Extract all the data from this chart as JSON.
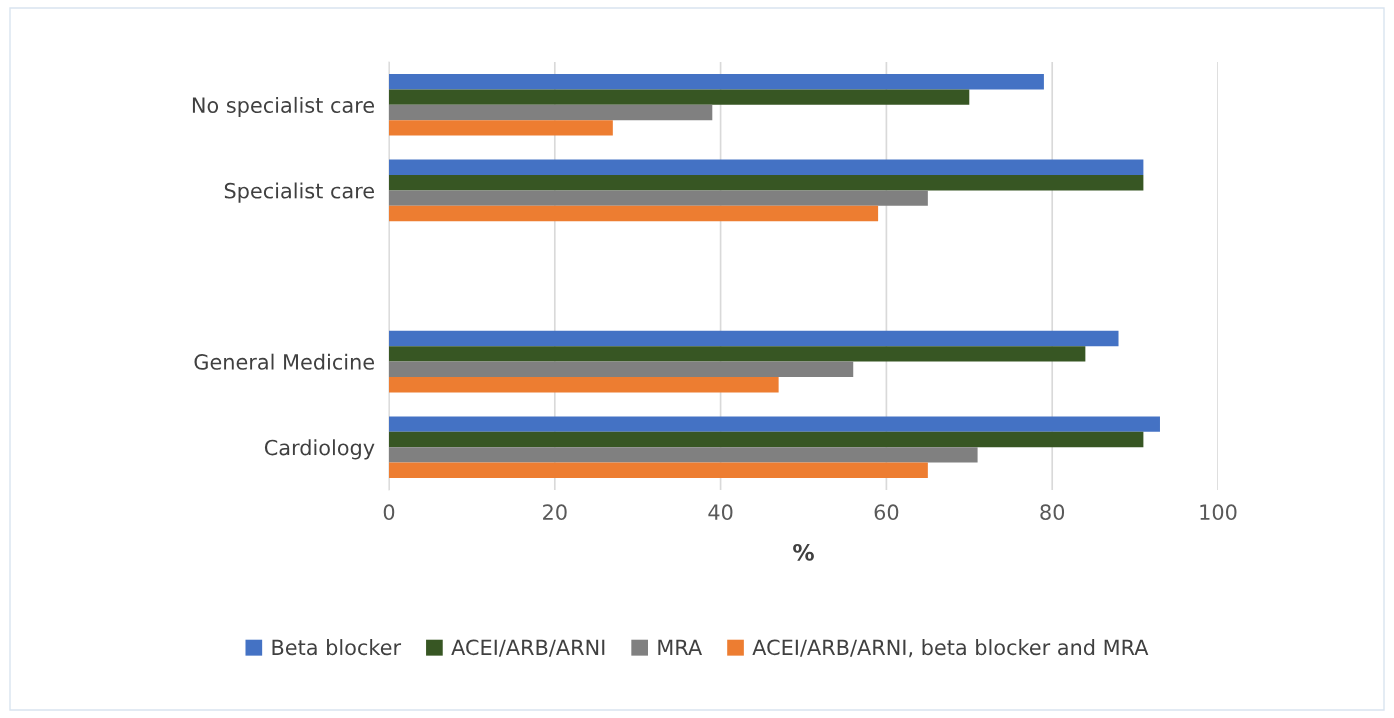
{
  "chart_data": {
    "type": "bar",
    "orientation": "horizontal",
    "xlabel": "%",
    "categories": [
      "No specialist care",
      "Specialist care",
      null,
      "General Medicine",
      "Cardiology"
    ],
    "series": [
      {
        "name": "Beta blocker",
        "color": "#4472c4",
        "values": [
          79,
          91,
          null,
          88,
          93
        ]
      },
      {
        "name": "ACEI/ARB/ARNI",
        "color": "#375623",
        "values": [
          70,
          91,
          null,
          84,
          91
        ]
      },
      {
        "name": "MRA",
        "color": "#808080",
        "values": [
          39,
          65,
          null,
          56,
          71
        ]
      },
      {
        "name": "ACEI/ARB/ARNI, beta blocker and MRA",
        "color": "#ed7d31",
        "values": [
          27,
          59,
          null,
          47,
          65
        ]
      }
    ],
    "xlim": [
      0,
      100
    ],
    "xticks": [
      0,
      20,
      40,
      60,
      80,
      100
    ],
    "grid": "x",
    "legend": "bottom"
  }
}
